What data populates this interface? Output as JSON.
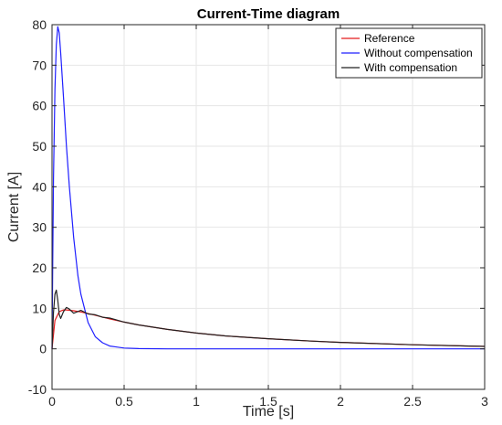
{
  "chart_data": {
    "type": "line",
    "title": "Current-Time diagram",
    "xlabel": "Time [s]",
    "ylabel": "Current [A]",
    "xlim": [
      0,
      3
    ],
    "ylim": [
      -10,
      80
    ],
    "xticks": [
      0,
      0.5,
      1,
      1.5,
      2,
      2.5,
      3
    ],
    "xtick_labels": [
      "0",
      "0.5",
      "1",
      "1.5",
      "2",
      "2.5",
      "3"
    ],
    "yticks": [
      -10,
      0,
      10,
      20,
      30,
      40,
      50,
      60,
      70,
      80
    ],
    "ytick_labels": [
      "-10",
      "0",
      "10",
      "20",
      "30",
      "40",
      "50",
      "60",
      "70",
      "80"
    ],
    "grid": true,
    "legend_position": "top-right",
    "series": [
      {
        "name": "Reference",
        "color": "#e41a1c",
        "x": [
          0,
          0.02,
          0.05,
          0.08,
          0.1,
          0.15,
          0.2,
          0.25,
          0.3,
          0.4,
          0.5,
          0.6,
          0.8,
          1.0,
          1.2,
          1.5,
          1.8,
          2.0,
          2.5,
          3.0
        ],
        "y": [
          0,
          7.0,
          9.2,
          9.6,
          9.6,
          9.4,
          9.1,
          8.7,
          8.3,
          7.4,
          6.6,
          5.9,
          4.8,
          3.9,
          3.2,
          2.5,
          1.9,
          1.6,
          1.0,
          0.6
        ]
      },
      {
        "name": "Without compensation",
        "color": "#1f1fff",
        "x": [
          0,
          0.005,
          0.01,
          0.02,
          0.03,
          0.04,
          0.05,
          0.06,
          0.08,
          0.1,
          0.12,
          0.15,
          0.18,
          0.2,
          0.25,
          0.3,
          0.35,
          0.4,
          0.5,
          0.6,
          0.8,
          1.0,
          1.5,
          2.0,
          2.5,
          3.0
        ],
        "y": [
          0,
          22,
          42,
          64,
          75,
          79.5,
          78,
          73,
          62,
          50,
          40,
          27.5,
          18,
          13.5,
          6.5,
          3.0,
          1.5,
          0.7,
          0.2,
          0.05,
          0,
          0,
          0,
          0,
          0,
          0
        ]
      },
      {
        "name": "With compensation",
        "color": "#222222",
        "x": [
          0,
          0.01,
          0.02,
          0.03,
          0.04,
          0.05,
          0.06,
          0.08,
          0.1,
          0.12,
          0.15,
          0.2,
          0.25,
          0.3,
          0.35,
          0.4,
          0.5,
          0.6,
          0.8,
          1.0,
          1.2,
          1.5,
          1.8,
          2.0,
          2.5,
          3.0
        ],
        "y": [
          0,
          9.0,
          13.5,
          14.5,
          12.0,
          8.5,
          7.5,
          9.2,
          10.2,
          9.8,
          8.8,
          9.5,
          8.6,
          8.4,
          7.8,
          7.6,
          6.6,
          5.9,
          4.8,
          3.9,
          3.2,
          2.5,
          1.9,
          1.6,
          1.0,
          0.6
        ]
      }
    ]
  }
}
